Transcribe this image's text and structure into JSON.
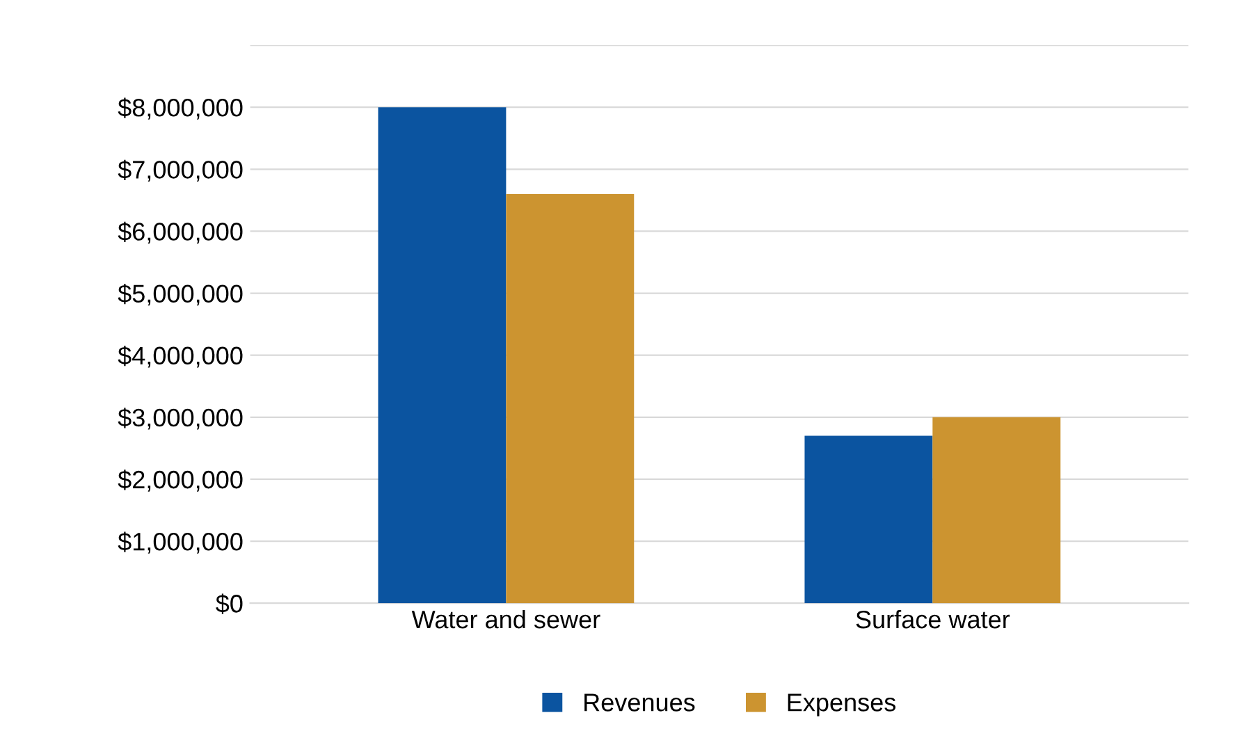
{
  "chart_data": {
    "type": "bar",
    "categories": [
      "Water and sewer",
      "Surface water"
    ],
    "series": [
      {
        "name": "Revenues",
        "color": "#0b54a0",
        "values": [
          8000000,
          2700000
        ]
      },
      {
        "name": "Expenses",
        "color": "#cc9430",
        "values": [
          6600000,
          3000000
        ]
      }
    ],
    "ylim": [
      0,
      9000000
    ],
    "yticks": [
      {
        "value": 0,
        "label": "$0"
      },
      {
        "value": 1000000,
        "label": "$1,000,000"
      },
      {
        "value": 2000000,
        "label": "$2,000,000"
      },
      {
        "value": 3000000,
        "label": "$3,000,000"
      },
      {
        "value": 4000000,
        "label": "$4,000,000"
      },
      {
        "value": 5000000,
        "label": "$5,000,000"
      },
      {
        "value": 6000000,
        "label": "$6,000,000"
      },
      {
        "value": 7000000,
        "label": "$7,000,000"
      },
      {
        "value": 8000000,
        "label": "$8,000,000"
      },
      {
        "value": 9000000,
        "label": null
      }
    ],
    "grid": "y",
    "legend": "bottom"
  }
}
